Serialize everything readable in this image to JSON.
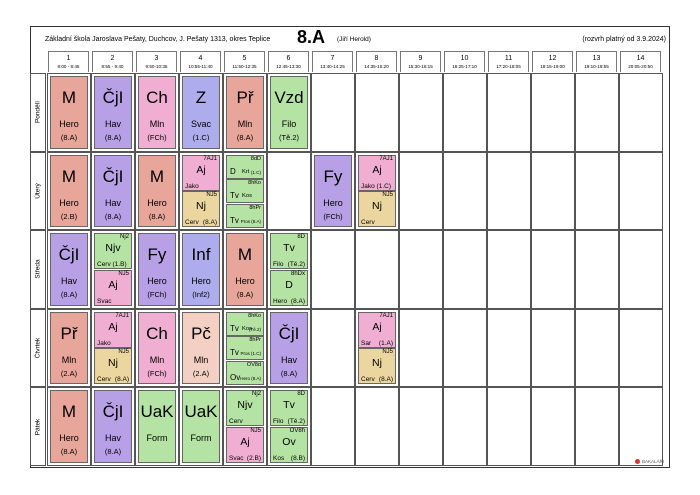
{
  "header": {
    "school": "Základní škola Jaroslava Pešaty, Duchcov, J. Pešaty 1313, okres Teplice",
    "class_name": "8.A",
    "class_teacher": "(Jiří Herold)",
    "validity": "(rozvrh platný od 3.9.2024)"
  },
  "periods": [
    {
      "num": "1",
      "time": "8:00 - 8:45"
    },
    {
      "num": "2",
      "time": "8:55 - 9:40"
    },
    {
      "num": "3",
      "time": "9:50-10:35"
    },
    {
      "num": "4",
      "time": "10:55-11:40"
    },
    {
      "num": "5",
      "time": "11:50-12:35"
    },
    {
      "num": "6",
      "time": "12:45-13:30"
    },
    {
      "num": "7",
      "time": "13:40-14:25"
    },
    {
      "num": "8",
      "time": "14:35-15:20"
    },
    {
      "num": "9",
      "time": "15:30-16:15"
    },
    {
      "num": "10",
      "time": "16:25-17:10"
    },
    {
      "num": "11",
      "time": "17:20-18:05"
    },
    {
      "num": "12",
      "time": "18:15-19:00"
    },
    {
      "num": "13",
      "time": "19:10-19:55"
    },
    {
      "num": "14",
      "time": "20:05-20:50"
    }
  ],
  "days": [
    {
      "name": "Pondělí",
      "row": 0
    },
    {
      "name": "Úterý",
      "row": 1
    },
    {
      "name": "Středa",
      "row": 2
    },
    {
      "name": "Čtvrtek",
      "row": 3
    },
    {
      "name": "Pátek",
      "row": 4
    }
  ],
  "colors": {
    "salmon": "#e8a59a",
    "purple": "#b8a0e6",
    "pink": "#efaed2",
    "blue": "#aeacec",
    "green": "#b4e3a4",
    "peach": "#f4d0c4",
    "tan": "#ecd69f"
  },
  "lessons": [
    {
      "day": 0,
      "period": 0,
      "kind": "big",
      "subject": "M",
      "teacher": "Hero",
      "room": "(8.A)",
      "color": "salmon"
    },
    {
      "day": 0,
      "period": 1,
      "kind": "big",
      "subject": "ČjI",
      "teacher": "Hav",
      "room": "(8.A)",
      "color": "purple"
    },
    {
      "day": 0,
      "period": 2,
      "kind": "big",
      "subject": "Ch",
      "teacher": "Mln",
      "room": "(FCh)",
      "color": "pink"
    },
    {
      "day": 0,
      "period": 3,
      "kind": "big",
      "subject": "Z",
      "teacher": "Svac",
      "room": "(1.C)",
      "color": "blue"
    },
    {
      "day": 0,
      "period": 4,
      "kind": "big",
      "subject": "Př",
      "teacher": "Mln",
      "room": "(8.A)",
      "color": "salmon"
    },
    {
      "day": 0,
      "period": 5,
      "kind": "big",
      "subject": "Vzd",
      "teacher": "Filo",
      "room": "(Tě.2)",
      "color": "green"
    },
    {
      "day": 1,
      "period": 0,
      "kind": "big",
      "subject": "M",
      "teacher": "Hero",
      "room": "(2.B)",
      "color": "salmon"
    },
    {
      "day": 1,
      "period": 1,
      "kind": "big",
      "subject": "ČjI",
      "teacher": "Hav",
      "room": "(8.A)",
      "color": "purple"
    },
    {
      "day": 1,
      "period": 2,
      "kind": "big",
      "subject": "M",
      "teacher": "Hero",
      "room": "(8.A)",
      "color": "salmon"
    },
    {
      "day": 1,
      "period": 3,
      "kind": "half",
      "pos": "top",
      "group": "7AJ1",
      "subject": "Aj",
      "teacher": "Jako",
      "room": "",
      "color": "pink"
    },
    {
      "day": 1,
      "period": 3,
      "kind": "half",
      "pos": "bot",
      "group": "NJ5",
      "subject": "Nj",
      "teacher": "Cerv",
      "room": "(8.A)",
      "color": "tan"
    },
    {
      "day": 1,
      "period": 4,
      "kind": "quarter",
      "slot": 0,
      "group": "8dD",
      "subject": "D",
      "teacher": "Krt",
      "room": "(1.C)",
      "color": "green"
    },
    {
      "day": 1,
      "period": 4,
      "kind": "quarter",
      "slot": 1,
      "group": "8hKo",
      "subject": "Tv",
      "teacher": "Kos",
      "room": "",
      "color": "green"
    },
    {
      "day": 1,
      "period": 4,
      "kind": "quarter",
      "slot": 2,
      "group": "8hPr",
      "subject": "Tv",
      "teacher": "",
      "room": "Pros (8.A)",
      "color": "green"
    },
    {
      "day": 1,
      "period": 6,
      "kind": "big",
      "subject": "Fy",
      "teacher": "Hero",
      "room": "(FCh)",
      "color": "purple"
    },
    {
      "day": 1,
      "period": 7,
      "kind": "half",
      "pos": "top",
      "group": "7AJ1",
      "subject": "Aj",
      "teacher": "Jako (1.C)",
      "room": "",
      "color": "pink"
    },
    {
      "day": 1,
      "period": 7,
      "kind": "half",
      "pos": "bot",
      "group": "NJ5",
      "subject": "Nj",
      "teacher": "Cerv",
      "room": "",
      "color": "tan"
    },
    {
      "day": 2,
      "period": 0,
      "kind": "big",
      "subject": "ČjI",
      "teacher": "Hav",
      "room": "(8.A)",
      "color": "purple"
    },
    {
      "day": 2,
      "period": 1,
      "kind": "half",
      "pos": "top",
      "group": "Nj2",
      "subject": "Njv",
      "teacher": "Cerv (1.B)",
      "room": "",
      "color": "green"
    },
    {
      "day": 2,
      "period": 1,
      "kind": "half",
      "pos": "bot",
      "group": "NJ5",
      "subject": "Aj",
      "teacher": "Svac",
      "room": "",
      "color": "pink"
    },
    {
      "day": 2,
      "period": 2,
      "kind": "big",
      "subject": "Fy",
      "teacher": "Hero",
      "room": "(FCh)",
      "color": "purple"
    },
    {
      "day": 2,
      "period": 3,
      "kind": "big",
      "subject": "Inf",
      "teacher": "Hero",
      "room": "(Inf2)",
      "color": "blue"
    },
    {
      "day": 2,
      "period": 4,
      "kind": "big",
      "subject": "M",
      "teacher": "Hero",
      "room": "(8.A)",
      "color": "salmon"
    },
    {
      "day": 2,
      "period": 5,
      "kind": "half",
      "pos": "top",
      "group": "8D",
      "subject": "Tv",
      "teacher": "Filo",
      "room": "(Tě.2)",
      "color": "green"
    },
    {
      "day": 2,
      "period": 5,
      "kind": "half",
      "pos": "bot",
      "group": "8hDx",
      "subject": "D",
      "teacher": "Hero",
      "room": "(8.A)",
      "color": "green"
    },
    {
      "day": 3,
      "period": 0,
      "kind": "big",
      "subject": "Př",
      "teacher": "Mln",
      "room": "(2.A)",
      "color": "salmon"
    },
    {
      "day": 3,
      "period": 1,
      "kind": "half",
      "pos": "top",
      "group": "7AJ1",
      "subject": "Aj",
      "teacher": "Jako",
      "room": "",
      "color": "pink"
    },
    {
      "day": 3,
      "period": 1,
      "kind": "half",
      "pos": "bot",
      "group": "NJ5",
      "subject": "Nj",
      "teacher": "Cerv",
      "room": "(8.A)",
      "color": "tan"
    },
    {
      "day": 3,
      "period": 2,
      "kind": "big",
      "subject": "Ch",
      "teacher": "Mln",
      "room": "(FCh)",
      "color": "pink"
    },
    {
      "day": 3,
      "period": 3,
      "kind": "big",
      "subject": "Pč",
      "teacher": "Mln",
      "room": "(2.A)",
      "color": "peach"
    },
    {
      "day": 3,
      "period": 4,
      "kind": "quarter",
      "slot": 0,
      "group": "8hKo",
      "subject": "Tv",
      "teacher": "Kos",
      "room": "(Tě.2)",
      "color": "green"
    },
    {
      "day": 3,
      "period": 4,
      "kind": "quarter",
      "slot": 1,
      "group": "8hPr",
      "subject": "Tv",
      "teacher": "",
      "room": "Pros (1.C)",
      "color": "green"
    },
    {
      "day": 3,
      "period": 4,
      "kind": "quarter",
      "slot": 2,
      "group": "OV8d",
      "subject": "Ov",
      "teacher": "",
      "room": "Hero (8.A)",
      "color": "green"
    },
    {
      "day": 3,
      "period": 5,
      "kind": "big",
      "subject": "ČjI",
      "teacher": "Hav",
      "room": "(8.A)",
      "color": "purple"
    },
    {
      "day": 3,
      "period": 7,
      "kind": "half",
      "pos": "top",
      "group": "7AJ1",
      "subject": "Aj",
      "teacher": "Sar",
      "room": "(1.A)",
      "color": "pink"
    },
    {
      "day": 3,
      "period": 7,
      "kind": "half",
      "pos": "bot",
      "group": "NJ5",
      "subject": "Nj",
      "teacher": "Cerv",
      "room": "(8.A)",
      "color": "tan"
    },
    {
      "day": 4,
      "period": 0,
      "kind": "big",
      "subject": "M",
      "teacher": "Hero",
      "room": "(8.A)",
      "color": "salmon"
    },
    {
      "day": 4,
      "period": 1,
      "kind": "big",
      "subject": "ČjI",
      "teacher": "Hav",
      "room": "(8.A)",
      "color": "purple"
    },
    {
      "day": 4,
      "period": 2,
      "kind": "big",
      "subject": "UaK",
      "teacher": "Form",
      "room": "",
      "color": "green"
    },
    {
      "day": 4,
      "period": 3,
      "kind": "big",
      "subject": "UaK",
      "teacher": "Form",
      "room": "",
      "color": "green"
    },
    {
      "day": 4,
      "period": 4,
      "kind": "half",
      "pos": "top",
      "group": "Nj2",
      "subject": "Njv",
      "teacher": "Cerv",
      "room": "",
      "color": "green"
    },
    {
      "day": 4,
      "period": 4,
      "kind": "half",
      "pos": "bot",
      "group": "NJ5",
      "subject": "Aj",
      "teacher": "Svac",
      "room": "(2.B)",
      "color": "pink"
    },
    {
      "day": 4,
      "period": 5,
      "kind": "half",
      "pos": "top",
      "group": "8D",
      "subject": "Tv",
      "teacher": "Filo",
      "room": "(Tě.2)",
      "color": "green"
    },
    {
      "day": 4,
      "period": 5,
      "kind": "half",
      "pos": "bot",
      "group": "OV8h",
      "subject": "Ov",
      "teacher": "Kos",
      "room": "(8.B)",
      "color": "green"
    }
  ],
  "footer": {
    "brand": "BAKALÁŘI"
  }
}
